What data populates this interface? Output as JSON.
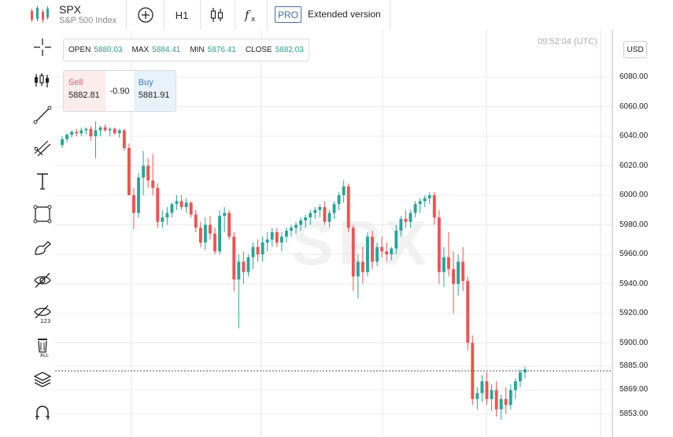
{
  "header": {
    "symbol": "SPX",
    "symbol_name": "S&P 500 Index",
    "timeframe": "H1",
    "pro_badge": "PRO",
    "extended_label": "Extended version"
  },
  "ohlc": {
    "open_label": "OPEN",
    "open": "5880.03",
    "max_label": "MAX",
    "max": "5884.41",
    "min_label": "MIN",
    "min": "5876.41",
    "close_label": "CLOSE",
    "close": "5882.03"
  },
  "trade": {
    "sell_label": "Sell",
    "sell_price": "5882.81",
    "spread": "-0.90",
    "buy_label": "Buy",
    "buy_price": "5881.91"
  },
  "clock": "09:52:04 (UTC)",
  "currency": "USD",
  "watermark": "SPX",
  "left_toolbar": [
    "crosshair-icon",
    "indicators-icon",
    "trendline-icon",
    "pitchfork-icon",
    "text-icon",
    "rectangle-icon",
    "brush-icon",
    "hide-drawings-icon",
    "hide-labels-icon",
    "remove-all-icon",
    "layers-icon",
    "magnet-icon"
  ],
  "colors": {
    "up": "#26a69a",
    "down": "#ef5350",
    "accent": "#4a6fa5"
  },
  "chart_data": {
    "type": "candlestick",
    "symbol": "SPX",
    "y_ticks": [
      "6080.00",
      "6060.00",
      "6040.00",
      "6020.00",
      "6000.00",
      "5980.00",
      "5960.00",
      "5940.00",
      "5920.00",
      "5900.00",
      "5885.00",
      "5869.00",
      "5853.00"
    ],
    "ylim": [
      5845,
      6100
    ],
    "last_price": 5882,
    "ohlc": [
      [
        6034,
        6040,
        6032,
        6038
      ],
      [
        6038,
        6042,
        6036,
        6041
      ],
      [
        6041,
        6044,
        6039,
        6043
      ],
      [
        6043,
        6045,
        6040,
        6042
      ],
      [
        6042,
        6046,
        6040,
        6044
      ],
      [
        6044,
        6046,
        6041,
        6045
      ],
      [
        6045,
        6047,
        6037,
        6040
      ],
      [
        6040,
        6050,
        6025,
        6044
      ],
      [
        6044,
        6047,
        6040,
        6046
      ],
      [
        6046,
        6048,
        6043,
        6044
      ],
      [
        6044,
        6046,
        6040,
        6045
      ],
      [
        6045,
        6046,
        6041,
        6042
      ],
      [
        6042,
        6045,
        6039,
        6044
      ],
      [
        6044,
        6045,
        6030,
        6032
      ],
      [
        6032,
        6035,
        6000,
        6000
      ],
      [
        6000,
        6005,
        5977,
        5988
      ],
      [
        5988,
        6015,
        5985,
        6012
      ],
      [
        6012,
        6030,
        6000,
        6020
      ],
      [
        6020,
        6025,
        6005,
        6010
      ],
      [
        6010,
        6028,
        6000,
        6005
      ],
      [
        6005,
        6008,
        5978,
        5982
      ],
      [
        5982,
        5990,
        5978,
        5985
      ],
      [
        5985,
        5992,
        5980,
        5988
      ],
      [
        5988,
        5995,
        5985,
        5994
      ],
      [
        5994,
        6000,
        5990,
        5996
      ],
      [
        5996,
        6000,
        5990,
        5992
      ],
      [
        5992,
        5998,
        5988,
        5995
      ],
      [
        5995,
        5996,
        5985,
        5987
      ],
      [
        5987,
        5990,
        5975,
        5978
      ],
      [
        5978,
        5982,
        5965,
        5968
      ],
      [
        5968,
        5985,
        5963,
        5980
      ],
      [
        5980,
        5986,
        5970,
        5974
      ],
      [
        5974,
        5978,
        5960,
        5962
      ],
      [
        5962,
        5990,
        5960,
        5986
      ],
      [
        5986,
        5992,
        5975,
        5988
      ],
      [
        5988,
        5990,
        5970,
        5972
      ],
      [
        5972,
        5975,
        5935,
        5943
      ],
      [
        5943,
        5960,
        5910,
        5955
      ],
      [
        5955,
        5962,
        5940,
        5948
      ],
      [
        5948,
        5960,
        5945,
        5958
      ],
      [
        5958,
        5968,
        5950,
        5965
      ],
      [
        5965,
        5970,
        5955,
        5960
      ],
      [
        5960,
        5972,
        5955,
        5968
      ],
      [
        5968,
        5975,
        5962,
        5970
      ],
      [
        5970,
        5978,
        5965,
        5975
      ],
      [
        5975,
        5978,
        5965,
        5968
      ],
      [
        5968,
        5975,
        5962,
        5972
      ],
      [
        5972,
        5978,
        5968,
        5976
      ],
      [
        5976,
        5980,
        5972,
        5978
      ],
      [
        5978,
        5982,
        5974,
        5980
      ],
      [
        5980,
        5985,
        5976,
        5983
      ],
      [
        5983,
        5987,
        5978,
        5985
      ],
      [
        5985,
        5990,
        5980,
        5988
      ],
      [
        5988,
        5992,
        5984,
        5990
      ],
      [
        5990,
        5994,
        5985,
        5992
      ],
      [
        5992,
        5996,
        5980,
        5982
      ],
      [
        5982,
        5990,
        5978,
        5988
      ],
      [
        5988,
        5996,
        5984,
        5994
      ],
      [
        5994,
        6002,
        5990,
        6000
      ],
      [
        6000,
        6010,
        5995,
        6006
      ],
      [
        6006,
        6008,
        5975,
        5978
      ],
      [
        5978,
        5980,
        5935,
        5945
      ],
      [
        5945,
        5960,
        5930,
        5955
      ],
      [
        5955,
        5965,
        5940,
        5948
      ],
      [
        5948,
        5975,
        5945,
        5972
      ],
      [
        5972,
        5976,
        5950,
        5955
      ],
      [
        5955,
        5968,
        5952,
        5965
      ],
      [
        5965,
        5972,
        5958,
        5962
      ],
      [
        5962,
        5968,
        5955,
        5960
      ],
      [
        5960,
        5965,
        5956,
        5964
      ],
      [
        5964,
        5980,
        5960,
        5976
      ],
      [
        5976,
        5986,
        5972,
        5984
      ],
      [
        5984,
        5990,
        5978,
        5982
      ],
      [
        5982,
        5990,
        5978,
        5988
      ],
      [
        5988,
        5996,
        5985,
        5994
      ],
      [
        5994,
        5998,
        5988,
        5996
      ],
      [
        5996,
        6000,
        5992,
        5998
      ],
      [
        5998,
        6002,
        5994,
        6000
      ],
      [
        6000,
        6002,
        5980,
        5985
      ],
      [
        5985,
        5990,
        5940,
        5948
      ],
      [
        5948,
        5965,
        5938,
        5958
      ],
      [
        5958,
        5975,
        5945,
        5950
      ],
      [
        5950,
        5962,
        5920,
        5940
      ],
      [
        5940,
        5960,
        5932,
        5955
      ],
      [
        5955,
        5965,
        5935,
        5942
      ],
      [
        5942,
        5945,
        5895,
        5900
      ],
      [
        5900,
        5905,
        5858,
        5862
      ],
      [
        5862,
        5870,
        5855,
        5866
      ],
      [
        5866,
        5878,
        5860,
        5874
      ],
      [
        5874,
        5880,
        5858,
        5862
      ],
      [
        5862,
        5872,
        5854,
        5868
      ],
      [
        5868,
        5874,
        5850,
        5855
      ],
      [
        5855,
        5865,
        5848,
        5862
      ],
      [
        5862,
        5870,
        5852,
        5858
      ],
      [
        5858,
        5872,
        5855,
        5868
      ],
      [
        5868,
        5876,
        5862,
        5874
      ],
      [
        5874,
        5882,
        5870,
        5880
      ],
      [
        5880,
        5884,
        5876,
        5882
      ]
    ]
  }
}
